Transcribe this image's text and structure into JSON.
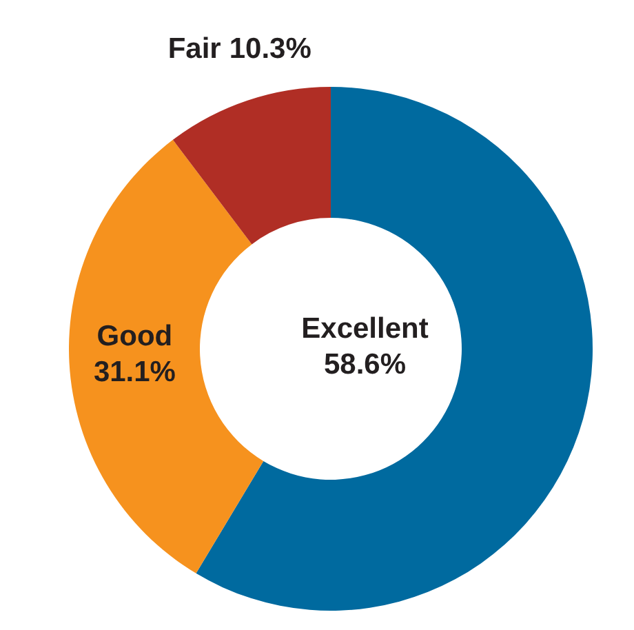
{
  "chart_data": {
    "type": "donut",
    "categories": [
      "Excellent",
      "Good",
      "Fair"
    ],
    "values": [
      58.6,
      31.1,
      10.3
    ],
    "colors": [
      "#006a9f",
      "#f6921e",
      "#b02e25"
    ],
    "value_labels": [
      "58.6%",
      "31.1%",
      "10.3%"
    ]
  }
}
